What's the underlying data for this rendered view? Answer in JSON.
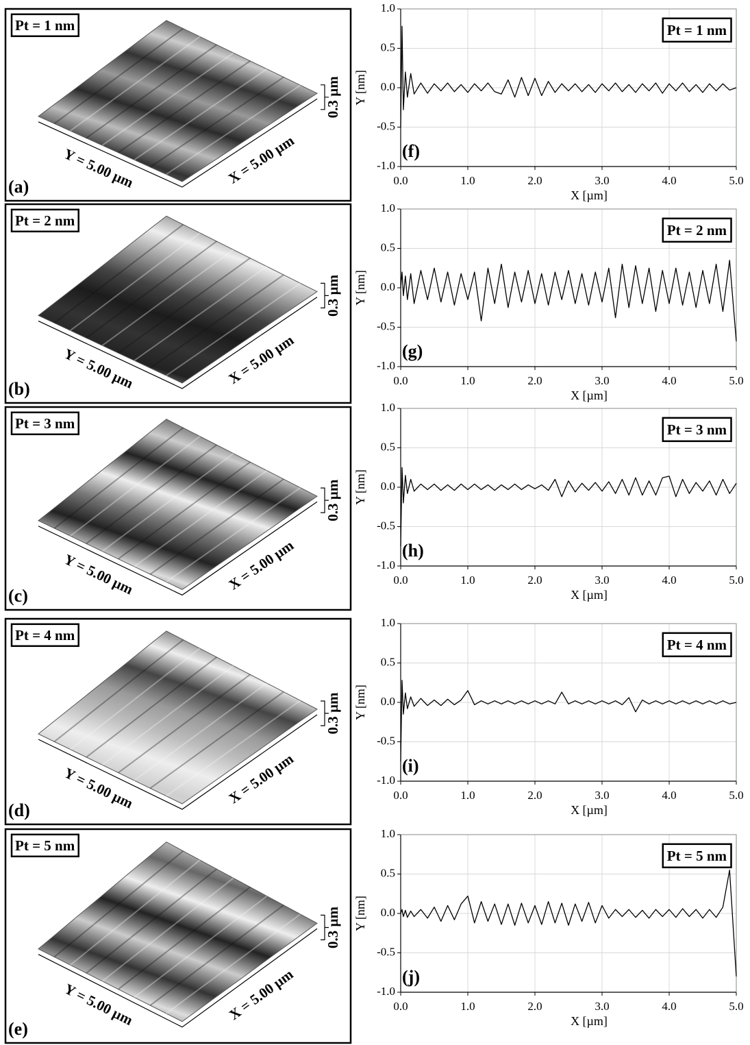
{
  "images": [
    {
      "label": "Pt = 1 nm",
      "panel": "(a)",
      "y_size": "Y = 5.00 µm",
      "x_size": "X = 5.00 µm",
      "z_scale": "0.3 µm"
    },
    {
      "label": "Pt = 2 nm",
      "panel": "(b)",
      "y_size": "Y = 5.00 µm",
      "x_size": "X = 5.00 µm",
      "z_scale": "0.3 µm"
    },
    {
      "label": "Pt = 3 nm",
      "panel": "(c)",
      "y_size": "Y = 5.00 µm",
      "x_size": "X = 5.00 µm",
      "z_scale": "0.3 µm"
    },
    {
      "label": "Pt = 4 nm",
      "panel": "(d)",
      "y_size": "Y = 5.00 µm",
      "x_size": "X = 5.00 µm",
      "z_scale": "0.3 µm"
    },
    {
      "label": "Pt = 5 nm",
      "panel": "(e)",
      "y_size": "Y = 5.00 µm",
      "x_size": "X = 5.00 µm",
      "z_scale": "0.3 µm"
    }
  ],
  "chart_data": [
    {
      "type": "line",
      "annotation": "Pt = 1 nm",
      "panel": "(f)",
      "xlabel": "X [µm]",
      "ylabel": "Y [nm]",
      "color": "#000000",
      "grid": true,
      "xlim": [
        0,
        5
      ],
      "ylim": [
        -1,
        1
      ],
      "xticks": [
        {
          "value": 0,
          "label": "0.0"
        },
        {
          "value": 1,
          "label": "1.0"
        },
        {
          "value": 2,
          "label": "2.0"
        },
        {
          "value": 3,
          "label": "3.0"
        },
        {
          "value": 4,
          "label": "4.0"
        },
        {
          "value": 5,
          "label": "5.0"
        }
      ],
      "yticks": [
        {
          "value": -1,
          "label": "-1.0"
        },
        -0.5,
        {
          "value": 0,
          "label": "0.0"
        },
        0.5,
        {
          "value": 1,
          "label": "1.0"
        }
      ],
      "x": [
        0,
        0.02,
        0.04,
        0.07,
        0.1,
        0.15,
        0.2,
        0.3,
        0.4,
        0.5,
        0.6,
        0.7,
        0.8,
        0.9,
        1.0,
        1.1,
        1.2,
        1.3,
        1.4,
        1.5,
        1.6,
        1.7,
        1.8,
        1.9,
        2.0,
        2.1,
        2.2,
        2.3,
        2.4,
        2.5,
        2.6,
        2.7,
        2.8,
        2.9,
        3.0,
        3.1,
        3.2,
        3.3,
        3.4,
        3.5,
        3.6,
        3.7,
        3.8,
        3.9,
        4.0,
        4.1,
        4.2,
        4.3,
        4.4,
        4.5,
        4.6,
        4.7,
        4.8,
        4.9,
        5.0
      ],
      "values": [
        -0.5,
        0.78,
        -0.28,
        0.2,
        -0.12,
        0.18,
        -0.08,
        0.06,
        -0.07,
        0.05,
        -0.04,
        0.06,
        -0.05,
        0.04,
        -0.06,
        0.05,
        -0.04,
        0.06,
        -0.05,
        -0.08,
        0.1,
        -0.12,
        0.13,
        -0.1,
        0.12,
        -0.1,
        0.08,
        -0.06,
        0.05,
        -0.04,
        0.05,
        -0.05,
        0.04,
        -0.06,
        0.05,
        -0.04,
        0.06,
        -0.05,
        0.04,
        -0.06,
        0.05,
        -0.04,
        0.06,
        -0.07,
        0.05,
        -0.04,
        0.06,
        -0.05,
        0.04,
        -0.06,
        0.05,
        -0.04,
        0.05,
        -0.03,
        0.0
      ]
    },
    {
      "type": "line",
      "annotation": "Pt = 2 nm",
      "panel": "(g)",
      "xlabel": "X [µm]",
      "ylabel": "Y [nm]",
      "color": "#000000",
      "grid": true,
      "xlim": [
        0,
        5
      ],
      "ylim": [
        -1,
        1
      ],
      "xticks": [
        {
          "value": 0,
          "label": "0.0"
        },
        {
          "value": 1,
          "label": "1.0"
        },
        {
          "value": 2,
          "label": "2.0"
        },
        {
          "value": 3,
          "label": "3.0"
        },
        {
          "value": 4,
          "label": "4.0"
        },
        {
          "value": 5,
          "label": "5.0"
        }
      ],
      "yticks": [
        {
          "value": -1,
          "label": "-1.0"
        },
        -0.5,
        {
          "value": 0,
          "label": "0.0"
        },
        0.5,
        {
          "value": 1,
          "label": "1.0"
        }
      ],
      "x": [
        0,
        0.02,
        0.04,
        0.07,
        0.1,
        0.15,
        0.2,
        0.3,
        0.4,
        0.5,
        0.6,
        0.7,
        0.8,
        0.9,
        1.0,
        1.1,
        1.2,
        1.3,
        1.4,
        1.5,
        1.6,
        1.7,
        1.8,
        1.9,
        2.0,
        2.1,
        2.2,
        2.3,
        2.4,
        2.5,
        2.6,
        2.7,
        2.8,
        2.9,
        3.0,
        3.1,
        3.2,
        3.3,
        3.4,
        3.5,
        3.6,
        3.7,
        3.8,
        3.9,
        4.0,
        4.1,
        4.2,
        4.3,
        4.4,
        4.5,
        4.6,
        4.7,
        4.8,
        4.9,
        5.0
      ],
      "values": [
        0.0,
        0.2,
        -0.1,
        0.15,
        -0.15,
        0.18,
        -0.2,
        0.22,
        -0.15,
        0.25,
        -0.18,
        0.2,
        -0.22,
        0.18,
        -0.15,
        0.2,
        -0.42,
        0.25,
        -0.2,
        0.3,
        -0.25,
        0.2,
        -0.18,
        0.22,
        -0.2,
        0.18,
        -0.22,
        0.2,
        -0.15,
        0.22,
        -0.2,
        0.18,
        -0.22,
        0.2,
        -0.18,
        0.25,
        -0.38,
        0.3,
        -0.25,
        0.28,
        -0.2,
        0.25,
        -0.3,
        0.22,
        -0.2,
        0.25,
        -0.22,
        0.2,
        -0.25,
        0.22,
        -0.2,
        0.3,
        -0.3,
        0.35,
        -0.68
      ]
    },
    {
      "type": "line",
      "annotation": "Pt = 3 nm",
      "panel": "(h)",
      "xlabel": "X [µm]",
      "ylabel": "Y [nm]",
      "color": "#000000",
      "grid": true,
      "xlim": [
        0,
        5
      ],
      "ylim": [
        -1,
        1
      ],
      "xticks": [
        {
          "value": 0,
          "label": "0.0"
        },
        {
          "value": 1,
          "label": "1.0"
        },
        {
          "value": 2,
          "label": "2.0"
        },
        {
          "value": 3,
          "label": "3.0"
        },
        {
          "value": 4,
          "label": "4.0"
        },
        {
          "value": 5,
          "label": "5.0"
        }
      ],
      "yticks": [
        {
          "value": -1,
          "label": "-1.0"
        },
        -0.5,
        {
          "value": 0,
          "label": "0.0"
        },
        0.5,
        {
          "value": 1,
          "label": "1.0"
        }
      ],
      "x": [
        0,
        0.02,
        0.04,
        0.07,
        0.1,
        0.15,
        0.2,
        0.3,
        0.4,
        0.5,
        0.6,
        0.7,
        0.8,
        0.9,
        1.0,
        1.1,
        1.2,
        1.3,
        1.4,
        1.5,
        1.6,
        1.7,
        1.8,
        1.9,
        2.0,
        2.1,
        2.2,
        2.3,
        2.4,
        2.5,
        2.6,
        2.7,
        2.8,
        2.9,
        3.0,
        3.1,
        3.2,
        3.3,
        3.4,
        3.5,
        3.6,
        3.7,
        3.8,
        3.9,
        4.0,
        4.1,
        4.2,
        4.3,
        4.4,
        4.5,
        4.6,
        4.7,
        4.8,
        4.9,
        5.0
      ],
      "values": [
        -0.75,
        0.25,
        -0.2,
        0.15,
        -0.08,
        0.1,
        -0.05,
        0.04,
        -0.03,
        0.04,
        -0.04,
        0.03,
        -0.04,
        0.04,
        -0.03,
        0.04,
        -0.03,
        0.03,
        -0.04,
        0.03,
        -0.03,
        0.04,
        -0.03,
        0.03,
        -0.02,
        0.03,
        -0.04,
        0.1,
        -0.12,
        0.08,
        -0.06,
        0.05,
        -0.04,
        0.06,
        -0.05,
        0.07,
        -0.08,
        0.1,
        -0.1,
        0.12,
        -0.1,
        0.08,
        -0.1,
        0.12,
        0.14,
        -0.12,
        0.1,
        -0.08,
        0.06,
        -0.05,
        0.08,
        -0.1,
        0.1,
        -0.08,
        0.05
      ]
    },
    {
      "type": "line",
      "annotation": "Pt = 4 nm",
      "panel": "(i)",
      "xlabel": "X [µm]",
      "ylabel": "Y [nm]",
      "color": "#000000",
      "grid": true,
      "xlim": [
        0,
        5
      ],
      "ylim": [
        -1,
        1
      ],
      "xticks": [
        {
          "value": 0,
          "label": "0.0"
        },
        {
          "value": 1,
          "label": "1.0"
        },
        {
          "value": 2,
          "label": "2.0"
        },
        {
          "value": 3,
          "label": "3.0"
        },
        {
          "value": 4,
          "label": "4.0"
        },
        {
          "value": 5,
          "label": "5.0"
        }
      ],
      "yticks": [
        {
          "value": -1,
          "label": "-1.0"
        },
        -0.5,
        {
          "value": 0,
          "label": "0.0"
        },
        0.5,
        {
          "value": 1,
          "label": "1.0"
        }
      ],
      "x": [
        0,
        0.02,
        0.04,
        0.07,
        0.1,
        0.15,
        0.2,
        0.3,
        0.4,
        0.5,
        0.6,
        0.7,
        0.8,
        0.9,
        1.0,
        1.1,
        1.2,
        1.3,
        1.4,
        1.5,
        1.6,
        1.7,
        1.8,
        1.9,
        2.0,
        2.1,
        2.2,
        2.3,
        2.4,
        2.5,
        2.6,
        2.7,
        2.8,
        2.9,
        3.0,
        3.1,
        3.2,
        3.3,
        3.4,
        3.5,
        3.6,
        3.7,
        3.8,
        3.9,
        4.0,
        4.1,
        4.2,
        4.3,
        4.4,
        4.5,
        4.6,
        4.7,
        4.8,
        4.9,
        5.0
      ],
      "values": [
        -0.75,
        0.28,
        -0.15,
        0.12,
        -0.08,
        0.07,
        -0.05,
        0.05,
        -0.04,
        0.03,
        -0.04,
        0.04,
        -0.03,
        0.03,
        0.15,
        -0.03,
        0.02,
        -0.02,
        0.02,
        -0.02,
        0.02,
        -0.02,
        0.02,
        -0.02,
        0.02,
        -0.02,
        0.02,
        -0.02,
        0.13,
        -0.02,
        0.02,
        -0.02,
        0.02,
        -0.02,
        0.02,
        -0.02,
        0.02,
        -0.03,
        0.06,
        -0.12,
        0.03,
        -0.02,
        0.02,
        -0.02,
        0.02,
        -0.02,
        0.02,
        -0.02,
        0.02,
        -0.02,
        0.02,
        -0.02,
        0.02,
        -0.02,
        0.0
      ]
    },
    {
      "type": "line",
      "annotation": "Pt = 5 nm",
      "panel": "(j)",
      "xlabel": "X [µm]",
      "ylabel": "Y [nm]",
      "color": "#000000",
      "grid": true,
      "xlim": [
        0,
        5
      ],
      "ylim": [
        -1,
        1
      ],
      "xticks": [
        {
          "value": 0,
          "label": "0.0"
        },
        {
          "value": 1,
          "label": "1.0"
        },
        {
          "value": 2,
          "label": "2.0"
        },
        {
          "value": 3,
          "label": "3.0"
        },
        {
          "value": 4,
          "label": "4.0"
        },
        {
          "value": 5,
          "label": "5.0"
        }
      ],
      "yticks": [
        {
          "value": -1,
          "label": "-1.0"
        },
        -0.5,
        {
          "value": 0,
          "label": "0.0"
        },
        0.5,
        {
          "value": 1,
          "label": "1.0"
        }
      ],
      "x": [
        0,
        0.02,
        0.04,
        0.07,
        0.1,
        0.15,
        0.2,
        0.3,
        0.4,
        0.5,
        0.6,
        0.7,
        0.8,
        0.9,
        1.0,
        1.1,
        1.2,
        1.3,
        1.4,
        1.5,
        1.6,
        1.7,
        1.8,
        1.9,
        2.0,
        2.1,
        2.2,
        2.3,
        2.4,
        2.5,
        2.6,
        2.7,
        2.8,
        2.9,
        3.0,
        3.1,
        3.2,
        3.3,
        3.4,
        3.5,
        3.6,
        3.7,
        3.8,
        3.9,
        4.0,
        4.1,
        4.2,
        4.3,
        4.4,
        4.5,
        4.6,
        4.7,
        4.8,
        4.9,
        5.0
      ],
      "values": [
        0.0,
        0.05,
        -0.04,
        0.04,
        -0.05,
        0.03,
        -0.04,
        0.05,
        -0.06,
        0.08,
        -0.1,
        0.1,
        -0.08,
        0.12,
        0.22,
        -0.12,
        0.15,
        -0.1,
        0.12,
        -0.14,
        0.12,
        -0.15,
        0.13,
        -0.12,
        0.1,
        -0.14,
        0.15,
        -0.12,
        0.13,
        -0.15,
        0.12,
        -0.1,
        0.14,
        -0.12,
        0.1,
        -0.06,
        0.05,
        -0.04,
        0.05,
        -0.05,
        0.04,
        -0.06,
        0.05,
        -0.04,
        0.05,
        -0.05,
        0.06,
        -0.04,
        0.05,
        -0.06,
        0.05,
        -0.05,
        0.08,
        0.55,
        -0.8
      ]
    }
  ]
}
